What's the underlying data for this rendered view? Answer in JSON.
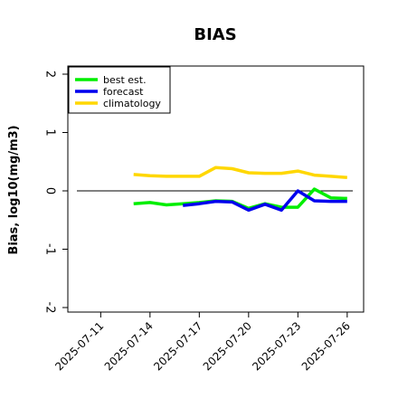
{
  "chart_data": {
    "type": "line",
    "title": "BIAS",
    "xlabel": "",
    "ylabel": "Bias, log10(mg/m3)",
    "ylim": [
      -2,
      2
    ],
    "yticks": [
      2,
      1,
      0,
      -1,
      -2
    ],
    "ytick_labels": [
      "2",
      "1",
      "0",
      "-1",
      "-2"
    ],
    "xlim": [
      "2025-07-09",
      "2025-07-27"
    ],
    "xticks": [
      "2025-07-11",
      "2025-07-14",
      "2025-07-17",
      "2025-07-20",
      "2025-07-23",
      "2025-07-26"
    ],
    "xtick_labels": [
      "2025-07-11",
      "2025-07-14",
      "2025-07-17",
      "2025-07-20",
      "2025-07-23",
      "2025-07-26"
    ],
    "highlighted_tick": "2025-07-17",
    "highlight_color": "#228B22",
    "reference_line": 0,
    "grid": false,
    "legend_position": "top-left",
    "series": [
      {
        "name": "best est.",
        "color": "#00ee00",
        "x": [
          "2025-07-13",
          "2025-07-14",
          "2025-07-15",
          "2025-07-16",
          "2025-07-17",
          "2025-07-18",
          "2025-07-19",
          "2025-07-20",
          "2025-07-21",
          "2025-07-22",
          "2025-07-23",
          "2025-07-24",
          "2025-07-25",
          "2025-07-26"
        ],
        "values": [
          -0.22,
          -0.2,
          -0.24,
          -0.22,
          -0.2,
          -0.17,
          -0.18,
          -0.3,
          -0.22,
          -0.28,
          -0.28,
          0.03,
          -0.12,
          -0.13
        ]
      },
      {
        "name": "forecast",
        "color": "#0000ee",
        "x": [
          "2025-07-16",
          "2025-07-17",
          "2025-07-18",
          "2025-07-19",
          "2025-07-20",
          "2025-07-21",
          "2025-07-22",
          "2025-07-23",
          "2025-07-24",
          "2025-07-25",
          "2025-07-26"
        ],
        "values": [
          -0.25,
          -0.22,
          -0.18,
          -0.19,
          -0.33,
          -0.23,
          -0.33,
          0.0,
          -0.17,
          -0.18,
          -0.18
        ]
      },
      {
        "name": "climatology",
        "color": "#ffd700",
        "x": [
          "2025-07-13",
          "2025-07-14",
          "2025-07-15",
          "2025-07-16",
          "2025-07-17",
          "2025-07-18",
          "2025-07-19",
          "2025-07-20",
          "2025-07-21",
          "2025-07-22",
          "2025-07-23",
          "2025-07-24",
          "2025-07-25",
          "2025-07-26"
        ],
        "values": [
          0.28,
          0.26,
          0.25,
          0.25,
          0.25,
          0.4,
          0.38,
          0.31,
          0.3,
          0.3,
          0.34,
          0.27,
          0.25,
          0.23
        ]
      }
    ]
  }
}
